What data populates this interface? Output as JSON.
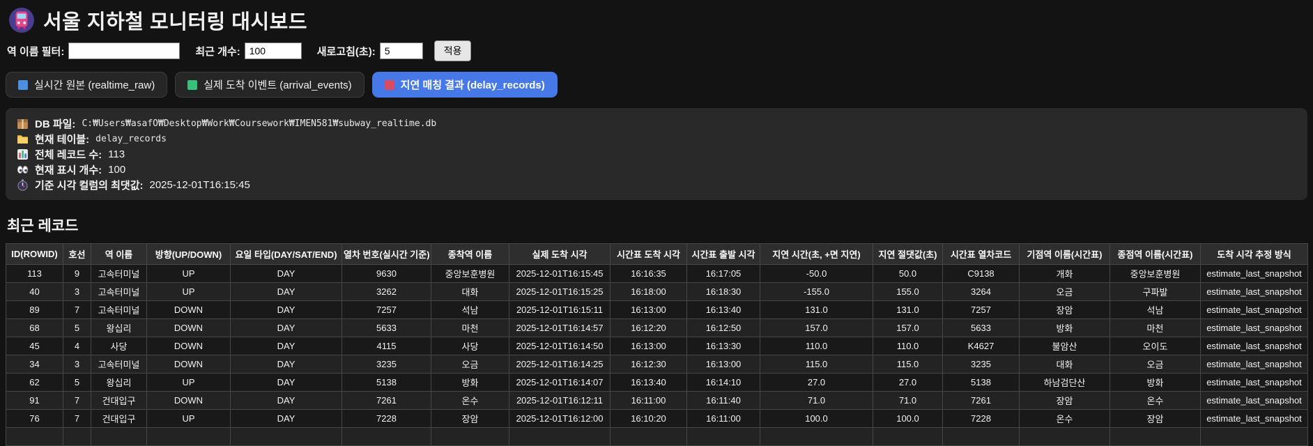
{
  "header": {
    "title": "서울 지하철 모니터링 대시보드"
  },
  "filters": {
    "station_label": "역 이름 필터:",
    "station_value": "",
    "count_label": "최근 개수:",
    "count_value": "100",
    "refresh_label": "새로고침(초):",
    "refresh_value": "5",
    "apply_label": "적용"
  },
  "tabs": [
    {
      "label": "실시간 원본 (realtime_raw)",
      "swatch": "#4a8fe0",
      "active": false
    },
    {
      "label": "실제 도착 이벤트 (arrival_events)",
      "swatch": "#36c07a",
      "active": false
    },
    {
      "label": "지연 매칭 결과 (delay_records)",
      "swatch": "#d94a63",
      "active": true
    }
  ],
  "info": {
    "db_label": "DB 파일:",
    "db_value": "C:₩Users₩asafO₩Desktop₩Work₩Coursework₩IMEN581₩subway_realtime.db",
    "table_label": "현재 테이블:",
    "table_value": "delay_records",
    "total_label": "전체 레코드 수:",
    "total_value": "113",
    "shown_label": "현재 표시 개수:",
    "shown_value": "100",
    "time_label": "기준 시각 컬럼의 최댓값:",
    "time_value": "2025-12-01T16:15:45"
  },
  "section_title": "최근 레코드",
  "table": {
    "columns": [
      "ID(ROWID)",
      "호선",
      "역 이름",
      "방향(UP/DOWN)",
      "요일 타입(DAY/SAT/END)",
      "열차 번호(실시간 기준)",
      "종착역 이름",
      "실제 도착 시각",
      "시간표 도착 시각",
      "시간표 출발 시각",
      "지연 시간(초, +면 지연)",
      "지연 절댓값(초)",
      "시간표 열차코드",
      "기점역 이름(시간표)",
      "종점역 이름(시간표)",
      "도착 시각 추정 방식"
    ],
    "rows": [
      [
        "113",
        "9",
        "고속터미널",
        "UP",
        "DAY",
        "9630",
        "중앙보훈병원",
        "2025-12-01T16:15:45",
        "16:16:35",
        "16:17:05",
        "-50.0",
        "50.0",
        "C9138",
        "개화",
        "중앙보훈병원",
        "estimate_last_snapshot"
      ],
      [
        "40",
        "3",
        "고속터미널",
        "UP",
        "DAY",
        "3262",
        "대화",
        "2025-12-01T16:15:25",
        "16:18:00",
        "16:18:30",
        "-155.0",
        "155.0",
        "3264",
        "오금",
        "구파발",
        "estimate_last_snapshot"
      ],
      [
        "89",
        "7",
        "고속터미널",
        "DOWN",
        "DAY",
        "7257",
        "석남",
        "2025-12-01T16:15:11",
        "16:13:00",
        "16:13:40",
        "131.0",
        "131.0",
        "7257",
        "장암",
        "석남",
        "estimate_last_snapshot"
      ],
      [
        "68",
        "5",
        "왕십리",
        "DOWN",
        "DAY",
        "5633",
        "마천",
        "2025-12-01T16:14:57",
        "16:12:20",
        "16:12:50",
        "157.0",
        "157.0",
        "5633",
        "방화",
        "마천",
        "estimate_last_snapshot"
      ],
      [
        "45",
        "4",
        "사당",
        "DOWN",
        "DAY",
        "4115",
        "사당",
        "2025-12-01T16:14:50",
        "16:13:00",
        "16:13:30",
        "110.0",
        "110.0",
        "K4627",
        "불암산",
        "오이도",
        "estimate_last_snapshot"
      ],
      [
        "34",
        "3",
        "고속터미널",
        "DOWN",
        "DAY",
        "3235",
        "오금",
        "2025-12-01T16:14:25",
        "16:12:30",
        "16:13:00",
        "115.0",
        "115.0",
        "3235",
        "대화",
        "오금",
        "estimate_last_snapshot"
      ],
      [
        "62",
        "5",
        "왕십리",
        "UP",
        "DAY",
        "5138",
        "방화",
        "2025-12-01T16:14:07",
        "16:13:40",
        "16:14:10",
        "27.0",
        "27.0",
        "5138",
        "하남검단산",
        "방화",
        "estimate_last_snapshot"
      ],
      [
        "91",
        "7",
        "건대입구",
        "DOWN",
        "DAY",
        "7261",
        "온수",
        "2025-12-01T16:12:11",
        "16:11:00",
        "16:11:40",
        "71.0",
        "71.0",
        "7261",
        "장암",
        "온수",
        "estimate_last_snapshot"
      ],
      [
        "76",
        "7",
        "건대입구",
        "UP",
        "DAY",
        "7228",
        "장암",
        "2025-12-01T16:12:00",
        "16:10:20",
        "16:11:00",
        "100.0",
        "100.0",
        "7228",
        "온수",
        "장암",
        "estimate_last_snapshot"
      ]
    ]
  },
  "colors": {
    "active_tab": "#4678e8",
    "tab_swatch_blue": "#4a8fe0",
    "tab_swatch_green": "#36c07a",
    "tab_swatch_red": "#d94a63"
  }
}
